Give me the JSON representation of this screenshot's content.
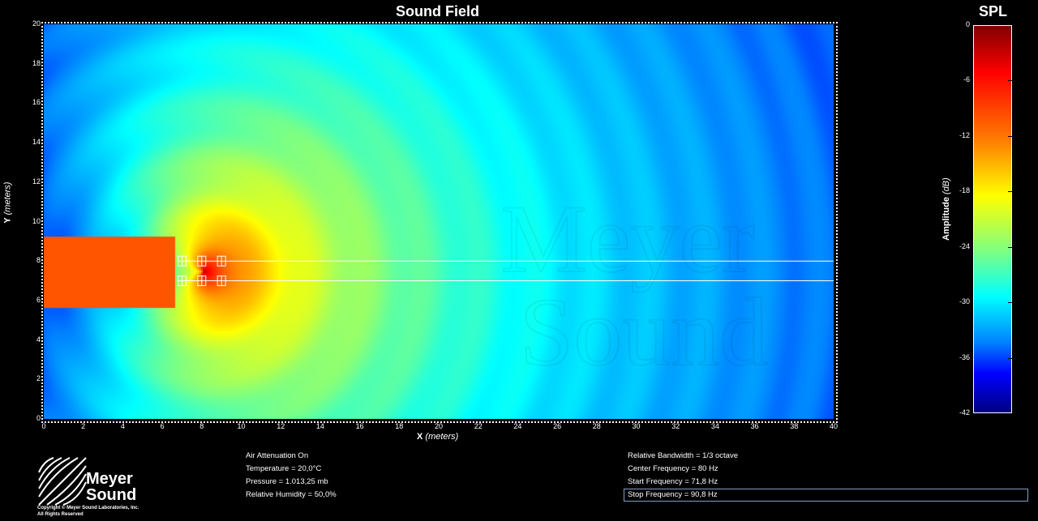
{
  "plot": {
    "title": "Sound Field",
    "xlabel_main": "X",
    "xlabel_unit": "(meters)",
    "ylabel_main": "Y",
    "ylabel_unit": "(meters)",
    "xticks": [
      "0",
      "2",
      "4",
      "6",
      "8",
      "10",
      "12",
      "14",
      "16",
      "18",
      "20",
      "22",
      "24",
      "26",
      "28",
      "30",
      "32",
      "34",
      "36",
      "38",
      "40"
    ],
    "yticks": [
      "0",
      "2",
      "4",
      "6",
      "8",
      "10",
      "12",
      "14",
      "16",
      "18",
      "20"
    ],
    "watermark_line1": "Meyer",
    "watermark_line2": "Sound"
  },
  "colorbar": {
    "title": "SPL",
    "label_main": "Amplitude",
    "label_unit": "(dB)",
    "ticks": [
      "0",
      "-6",
      "-12",
      "-18",
      "-24",
      "-30",
      "-36",
      "-42"
    ],
    "colors": [
      "#800000",
      "#ff0000",
      "#ff8000",
      "#ffff00",
      "#80ff80",
      "#00ffff",
      "#0080ff",
      "#0000ff",
      "#000080"
    ]
  },
  "chart_data": {
    "type": "heatmap",
    "title": "Sound Field",
    "xlabel": "X (meters)",
    "ylabel": "Y (meters)",
    "xlim": [
      0,
      40
    ],
    "ylim": [
      0,
      20
    ],
    "colorbar_label": "Amplitude (dB)",
    "colorbar_range": [
      -42,
      0
    ],
    "sources": [
      {
        "x": 7,
        "y": 8
      },
      {
        "x": 8,
        "y": 8
      },
      {
        "x": 9,
        "y": 8
      },
      {
        "x": 7,
        "y": 7
      },
      {
        "x": 8,
        "y": 7
      },
      {
        "x": 9,
        "y": 7
      }
    ],
    "guide_lines_y": [
      8,
      7
    ]
  },
  "logo": {
    "name_line1": "Meyer",
    "name_line2": "Sound",
    "copyright": "Copyright © Meyer Sound Laboratories, Inc.",
    "rights": "All Rights Reserved"
  },
  "info_left": {
    "air_attenuation": "Air Attenuation On",
    "temperature": "Temperature = 20,0°C",
    "pressure": "Pressure = 1.013,25  mb",
    "humidity": "Relative Humidity = 50,0%"
  },
  "info_right": {
    "bandwidth": "Relative Bandwidth = 1/3 octave",
    "center_freq": "Center Frequency = 80 Hz",
    "start_freq": "Start Frequency = 71,8 Hz",
    "stop_freq": "Stop Frequency = 90,8 Hz"
  }
}
